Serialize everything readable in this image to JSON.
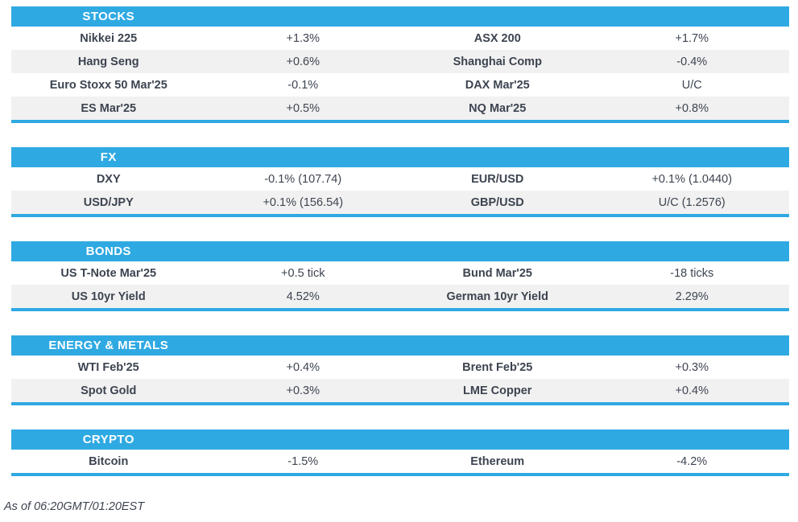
{
  "colors": {
    "accent_blue": "#2fa9e2",
    "alt_row_bg": "#f1f1f1",
    "text": "#3d4450",
    "header_text": "#ffffff"
  },
  "sections": [
    {
      "title": "STOCKS",
      "rows": [
        [
          "Nikkei 225",
          "+1.3%",
          "ASX 200",
          "+1.7%"
        ],
        [
          "Hang Seng",
          "+0.6%",
          "Shanghai Comp",
          "-0.4%"
        ],
        [
          "Euro Stoxx 50 Mar'25",
          "-0.1%",
          "DAX Mar'25",
          "U/C"
        ],
        [
          "ES Mar'25",
          "+0.5%",
          "NQ Mar'25",
          "+0.8%"
        ]
      ]
    },
    {
      "title": "FX",
      "rows": [
        [
          "DXY",
          "-0.1% (107.74)",
          "EUR/USD",
          "+0.1% (1.0440)"
        ],
        [
          "USD/JPY",
          "+0.1% (156.54)",
          "GBP/USD",
          "U/C (1.2576)"
        ]
      ]
    },
    {
      "title": "BONDS",
      "rows": [
        [
          "US T-Note Mar'25",
          "+0.5 tick",
          "Bund Mar'25",
          "-18 ticks"
        ],
        [
          "US 10yr Yield",
          "4.52%",
          "German 10yr Yield",
          "2.29%"
        ]
      ]
    },
    {
      "title": "ENERGY & METALS",
      "rows": [
        [
          "WTI Feb'25",
          "+0.4%",
          "Brent Feb'25",
          "+0.3%"
        ],
        [
          "Spot Gold",
          "+0.3%",
          "LME Copper",
          "+0.4%"
        ]
      ]
    },
    {
      "title": "CRYPTO",
      "rows": [
        [
          "Bitcoin",
          "-1.5%",
          "Ethereum",
          "-4.2%"
        ]
      ]
    }
  ],
  "footer": {
    "as_of": "As of 06:20GMT/01:20EST"
  }
}
